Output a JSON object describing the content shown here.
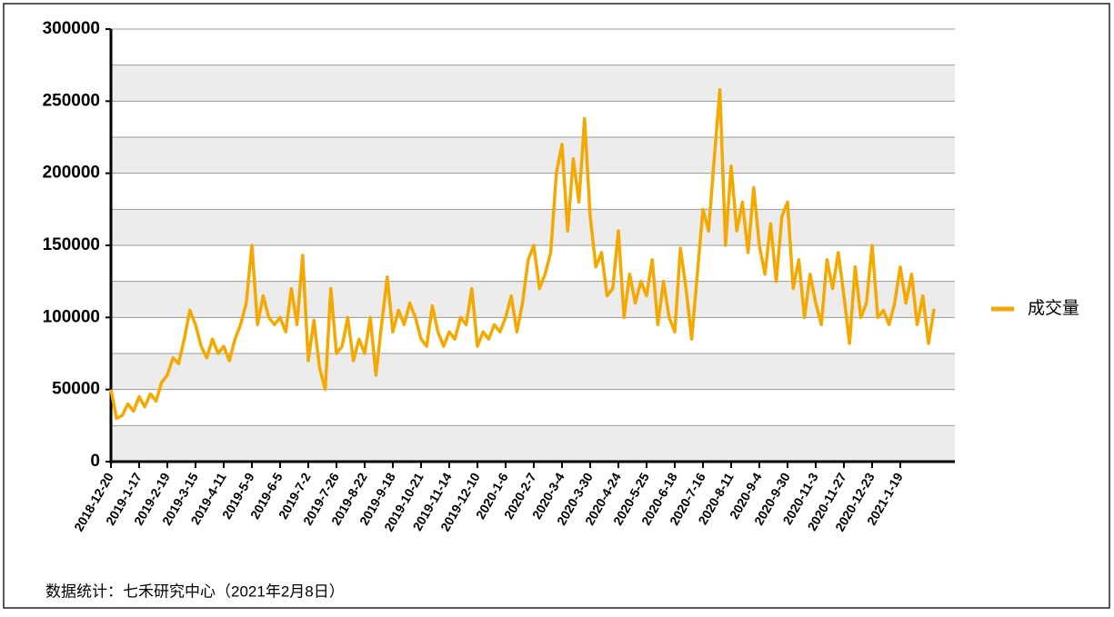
{
  "chart_data": {
    "type": "line",
    "footnote": "数据统计：七禾研究中心（2021年2月8日）",
    "categories": [
      "2018-12-20",
      null,
      null,
      null,
      null,
      "2019-1-17",
      null,
      null,
      null,
      null,
      "2019-2-19",
      null,
      null,
      null,
      null,
      "2019-3-15",
      null,
      null,
      null,
      null,
      "2019-4-11",
      null,
      null,
      null,
      null,
      "2019-5-9",
      null,
      null,
      null,
      null,
      "2019-6-5",
      null,
      null,
      null,
      null,
      "2019-7-2",
      null,
      null,
      null,
      null,
      "2019-7-26",
      null,
      null,
      null,
      null,
      "2019-8-22",
      null,
      null,
      null,
      null,
      "2019-9-18",
      null,
      null,
      null,
      null,
      "2019-10-21",
      null,
      null,
      null,
      null,
      "2019-11-14",
      null,
      null,
      null,
      null,
      "2019-12-10",
      null,
      null,
      null,
      null,
      "2020-1-6",
      null,
      null,
      null,
      null,
      "2020-2-7",
      null,
      null,
      null,
      null,
      "2020-3-4",
      null,
      null,
      null,
      null,
      "2020-3-30",
      null,
      null,
      null,
      null,
      "2020-4-24",
      null,
      null,
      null,
      null,
      "2020-5-25",
      null,
      null,
      null,
      null,
      "2020-6-18",
      null,
      null,
      null,
      null,
      "2020-7-16",
      null,
      null,
      null,
      null,
      "2020-8-11",
      null,
      null,
      null,
      null,
      "2020-9-4",
      null,
      null,
      null,
      null,
      "2020-9-30",
      null,
      null,
      null,
      null,
      "2020-11-3",
      null,
      null,
      null,
      null,
      "2020-11-27",
      null,
      null,
      null,
      null,
      "2020-12-23",
      null,
      null,
      null,
      null,
      "2021-1-19",
      null,
      null,
      null,
      null,
      null,
      null
    ],
    "series": [
      {
        "name": "成交量",
        "color": "#f5a800",
        "values": [
          50000,
          30000,
          32000,
          40000,
          35000,
          45000,
          38000,
          47000,
          42000,
          55000,
          60000,
          72000,
          68000,
          85000,
          105000,
          95000,
          80000,
          72000,
          85000,
          75000,
          80000,
          70000,
          85000,
          95000,
          110000,
          150000,
          95000,
          115000,
          100000,
          95000,
          100000,
          90000,
          120000,
          95000,
          143000,
          70000,
          98000,
          65000,
          50000,
          120000,
          75000,
          80000,
          100000,
          70000,
          85000,
          75000,
          100000,
          60000,
          95000,
          128000,
          90000,
          105000,
          95000,
          110000,
          100000,
          85000,
          80000,
          108000,
          90000,
          80000,
          90000,
          85000,
          100000,
          95000,
          120000,
          80000,
          90000,
          85000,
          95000,
          90000,
          100000,
          115000,
          90000,
          110000,
          140000,
          150000,
          120000,
          130000,
          145000,
          200000,
          220000,
          160000,
          210000,
          180000,
          238000,
          170000,
          135000,
          145000,
          115000,
          120000,
          160000,
          100000,
          130000,
          110000,
          125000,
          115000,
          140000,
          95000,
          125000,
          100000,
          90000,
          148000,
          120000,
          85000,
          130000,
          175000,
          160000,
          210000,
          258000,
          150000,
          205000,
          160000,
          180000,
          145000,
          190000,
          150000,
          130000,
          165000,
          125000,
          170000,
          180000,
          120000,
          140000,
          100000,
          130000,
          110000,
          95000,
          140000,
          120000,
          145000,
          115000,
          82000,
          135000,
          100000,
          110000,
          150000,
          100000,
          105000,
          95000,
          110000,
          135000,
          110000,
          130000,
          95000,
          115000,
          82000,
          106000
        ]
      }
    ],
    "ylim": [
      0,
      300000
    ],
    "yticks": [
      0,
      50000,
      100000,
      150000,
      200000,
      250000,
      300000
    ],
    "grid": true,
    "legend": "right"
  }
}
